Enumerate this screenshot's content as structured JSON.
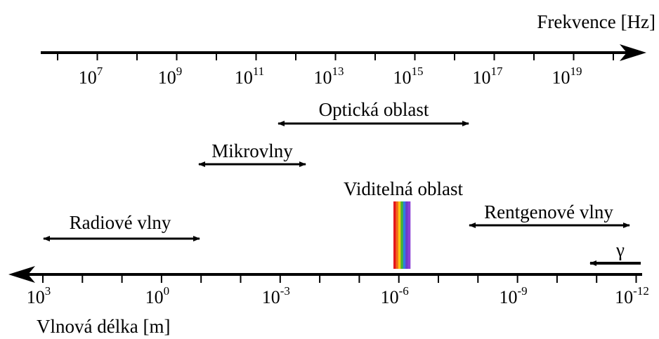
{
  "frequency_axis": {
    "title": "Frekvence [Hz]",
    "ticks": [
      {
        "base": "10",
        "exp": "7"
      },
      {
        "base": "10",
        "exp": "9"
      },
      {
        "base": "10",
        "exp": "11"
      },
      {
        "base": "10",
        "exp": "13"
      },
      {
        "base": "10",
        "exp": "15"
      },
      {
        "base": "10",
        "exp": "17"
      },
      {
        "base": "10",
        "exp": "19"
      }
    ]
  },
  "wavelength_axis": {
    "title": "Vlnová délka [m]",
    "ticks": [
      {
        "base": "10",
        "exp": "3"
      },
      {
        "base": "10",
        "exp": "0"
      },
      {
        "base": "10",
        "exp": "-3"
      },
      {
        "base": "10",
        "exp": "-6"
      },
      {
        "base": "10",
        "exp": "-9"
      },
      {
        "base": "10",
        "exp": "-12"
      }
    ]
  },
  "bands": {
    "optical": "Optická oblast",
    "microwaves": "Mikrovlny",
    "visible": "Viditelná oblast",
    "radio": "Radiové vlny",
    "xray": "Rentgenové vlny",
    "gamma": "γ"
  },
  "visible_spectrum_colors": [
    "#e4161c",
    "#f36a1a",
    "#f7c613",
    "#43b435",
    "#2e7ee0",
    "#6b3cc9",
    "#8b3fd6"
  ]
}
